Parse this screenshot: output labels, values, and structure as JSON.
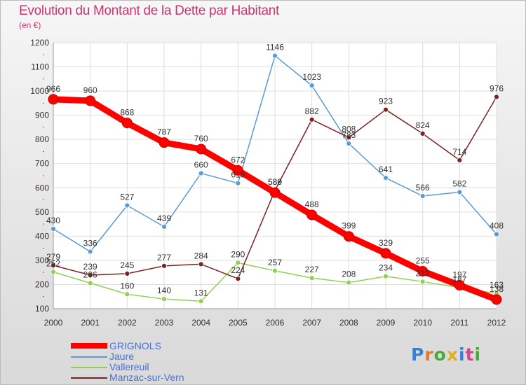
{
  "header": {
    "title": "Evolution du Montant de la Dette par Habitant",
    "subtitle": "(en €)"
  },
  "logo": {
    "text": "Proxiti",
    "colors": [
      "#3a7fd6",
      "#e07a2a",
      "#4aa83a",
      "#e0b020",
      "#3a7fd6",
      "#d04a8a",
      "#4aa83a"
    ]
  },
  "chart_data": {
    "type": "line",
    "x": [
      "2000",
      "2001",
      "2002",
      "2003",
      "2004",
      "2005",
      "2006",
      "2007",
      "2008",
      "2009",
      "2010",
      "2011",
      "2012"
    ],
    "ylim": [
      100,
      1200
    ],
    "yticks": [
      "100",
      "200",
      "300",
      "400",
      "500",
      "600",
      "700",
      "800",
      "900",
      "1000",
      "1100",
      "1200"
    ],
    "grid": true,
    "legend_position": "bottom-left",
    "series": [
      {
        "name": "GRIGNOLS",
        "color": "#ff0000",
        "values": [
          966,
          960,
          868,
          787,
          760,
          672,
          580,
          488,
          399,
          329,
          255,
          197,
          138
        ],
        "labels": [
          "966",
          "960",
          "868",
          "787",
          "760",
          "672",
          "580",
          "488",
          "399",
          "329",
          "255",
          "197",
          "138"
        ]
      },
      {
        "name": "Jaure",
        "color": "#5b9bd5",
        "values": [
          430,
          336,
          527,
          439,
          660,
          619,
          1146,
          1023,
          783,
          641,
          566,
          582,
          408
        ],
        "labels": [
          "430",
          "336",
          "527",
          "439",
          "660",
          "619",
          "1146",
          "1023",
          "783",
          "641",
          "566",
          "582",
          "408"
        ]
      },
      {
        "name": "Vallereuil",
        "color": "#8fd14f",
        "values": [
          252,
          206,
          160,
          140,
          131,
          290,
          257,
          227,
          208,
          234,
          212,
          187,
          163
        ],
        "labels": [
          "252",
          "206",
          "160",
          "140",
          "131",
          "290",
          "257",
          "227",
          "208",
          "234",
          "212",
          "187",
          "163"
        ]
      },
      {
        "name": "Manzac-sur-Vern",
        "color": "#7b2222",
        "values": [
          279,
          239,
          245,
          277,
          284,
          224,
          589,
          882,
          808,
          923,
          824,
          714,
          976
        ],
        "labels": [
          "279",
          "239",
          "245",
          "277",
          "284",
          "224",
          "589",
          "882",
          "808",
          "923",
          "824",
          "714",
          "976"
        ]
      }
    ]
  }
}
